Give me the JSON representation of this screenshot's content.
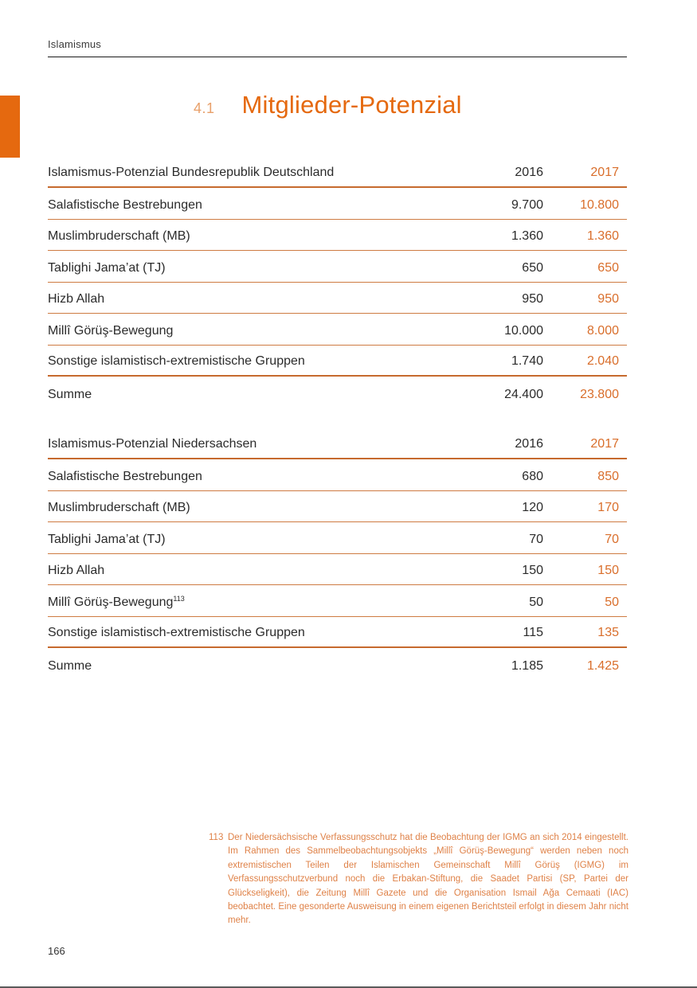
{
  "page": {
    "running_header": "Islamismus",
    "page_number": "166"
  },
  "title": {
    "number": "4.1",
    "text": "Mitglieder-Potenzial"
  },
  "colors": {
    "accent_orange": "#E5690F",
    "title_number_orange": "#E8A06A",
    "rule_thick_orange": "#C66A2E",
    "rule_thin_orange": "#CE7B42",
    "value_orange": "#D96E2B",
    "footnote_orange": "#DF8147",
    "text_dark": "#2b2b2b"
  },
  "tables": [
    {
      "title": "Islamismus-Potenzial Bundesrepublik Deutschland",
      "columns": [
        "2016",
        "2017"
      ],
      "rows": [
        {
          "label": "Salafistische Bestrebungen",
          "v2016": "9.700",
          "v2017": "10.800"
        },
        {
          "label": "Muslimbruderschaft (MB)",
          "v2016": "1.360",
          "v2017": "1.360"
        },
        {
          "label": "Tablighi Jama’at (TJ)",
          "v2016": "650",
          "v2017": "650"
        },
        {
          "label": "Hizb Allah",
          "v2016": "950",
          "v2017": "950"
        },
        {
          "label": "Millî Görüş-Bewegung",
          "v2016": "10.000",
          "v2017": "8.000"
        },
        {
          "label": "Sonstige islamistisch-extremistische Gruppen",
          "v2016": "1.740",
          "v2017": "2.040"
        },
        {
          "label": "Summe",
          "v2016": "24.400",
          "v2017": "23.800",
          "is_sum": true
        }
      ]
    },
    {
      "title": "Islamismus-Potenzial Niedersachsen",
      "columns": [
        "2016",
        "2017"
      ],
      "rows": [
        {
          "label": "Salafistische Bestrebungen",
          "v2016": "680",
          "v2017": "850"
        },
        {
          "label": "Muslimbruderschaft (MB)",
          "v2016": "120",
          "v2017": "170"
        },
        {
          "label": "Tablighi Jama’at (TJ)",
          "v2016": "70",
          "v2017": "70"
        },
        {
          "label": "Hizb Allah",
          "v2016": "150",
          "v2017": "150"
        },
        {
          "label": "Millî Görüş-Bewegung",
          "footnote_ref": "113",
          "v2016": "50",
          "v2017": "50"
        },
        {
          "label": "Sonstige islamistisch-extremistische Gruppen",
          "v2016": "115",
          "v2017": "135"
        },
        {
          "label": "Summe",
          "v2016": "1.185",
          "v2017": "1.425",
          "is_sum": true
        }
      ]
    }
  ],
  "footnote": {
    "number": "113",
    "text": "Der Niedersächsische Verfassungsschutz hat die Beobachtung der IGMG an sich 2014 eingestellt. Im Rahmen des Sammelbeobachtungsobjekts „Millî Görüş-Bewegung“ werden neben noch extremistischen Teilen der Islamischen Gemeinschaft Millî Görüş (IGMG) im Verfassungsschutzverbund noch die Erbakan-Stiftung, die Saadet Partisi (SP, Partei der Glückseligkeit), die Zeitung Millî Gazete und die Organisation Ismail Ağa Cemaati (IAC) beobachtet. Eine gesonderte Ausweisung in einem eigenen Berichtsteil erfolgt in diesem Jahr nicht mehr."
  }
}
